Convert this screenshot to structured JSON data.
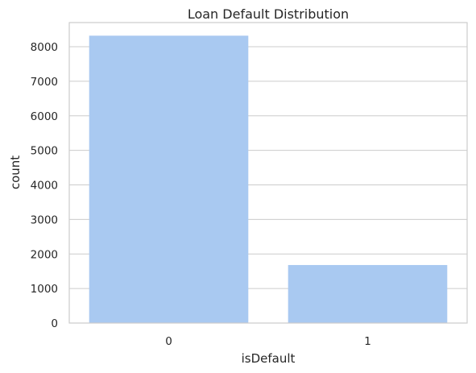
{
  "chart_data": {
    "type": "bar",
    "title": "Loan Default Distribution",
    "xlabel": "isDefault",
    "ylabel": "count",
    "categories": [
      "0",
      "1"
    ],
    "values": [
      8320,
      1680
    ],
    "ylim": [
      0,
      8700
    ],
    "yticks": [
      0,
      1000,
      2000,
      3000,
      4000,
      5000,
      6000,
      7000,
      8000
    ],
    "ytick_labels": [
      "0",
      "1000",
      "2000",
      "3000",
      "4000",
      "5000",
      "6000",
      "7000",
      "8000"
    ],
    "grid": "horizontal",
    "colors": {
      "bar": "#a9c9f1",
      "grid": "#cccccc",
      "text": "#262626"
    }
  }
}
